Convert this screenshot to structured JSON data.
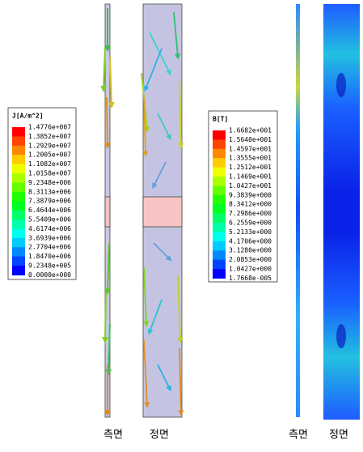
{
  "legends": [
    {
      "title": "J[A/m^2]",
      "labels": [
        "1.4776e+007",
        "1.3852e+007",
        "1.2929e+007",
        "1.2005e+007",
        "1.1082e+007",
        "1.0158e+007",
        "9.2348e+006",
        "8.3113e+006",
        "7.3879e+006",
        "6.4644e+006",
        "5.5409e+006",
        "4.6174e+006",
        "3.6939e+006",
        "2.7704e+006",
        "1.8470e+006",
        "9.2348e+005",
        "0.0000e+000"
      ]
    },
    {
      "title": "B[T]",
      "labels": [
        "1.6682e+001",
        "1.5640e+001",
        "1.4597e+001",
        "1.3555e+001",
        "1.2512e+001",
        "1.1469e+001",
        "1.0427e+001",
        "9.3839e+000",
        "8.3412e+000",
        "7.2986e+000",
        "6.2559e+000",
        "5.2133e+000",
        "4.1706e+000",
        "3.1280e+000",
        "2.0853e+000",
        "1.0427e+000",
        "1.7668e-005"
      ]
    }
  ],
  "captions": [
    "측면",
    "정면",
    "측면",
    "정면"
  ]
}
